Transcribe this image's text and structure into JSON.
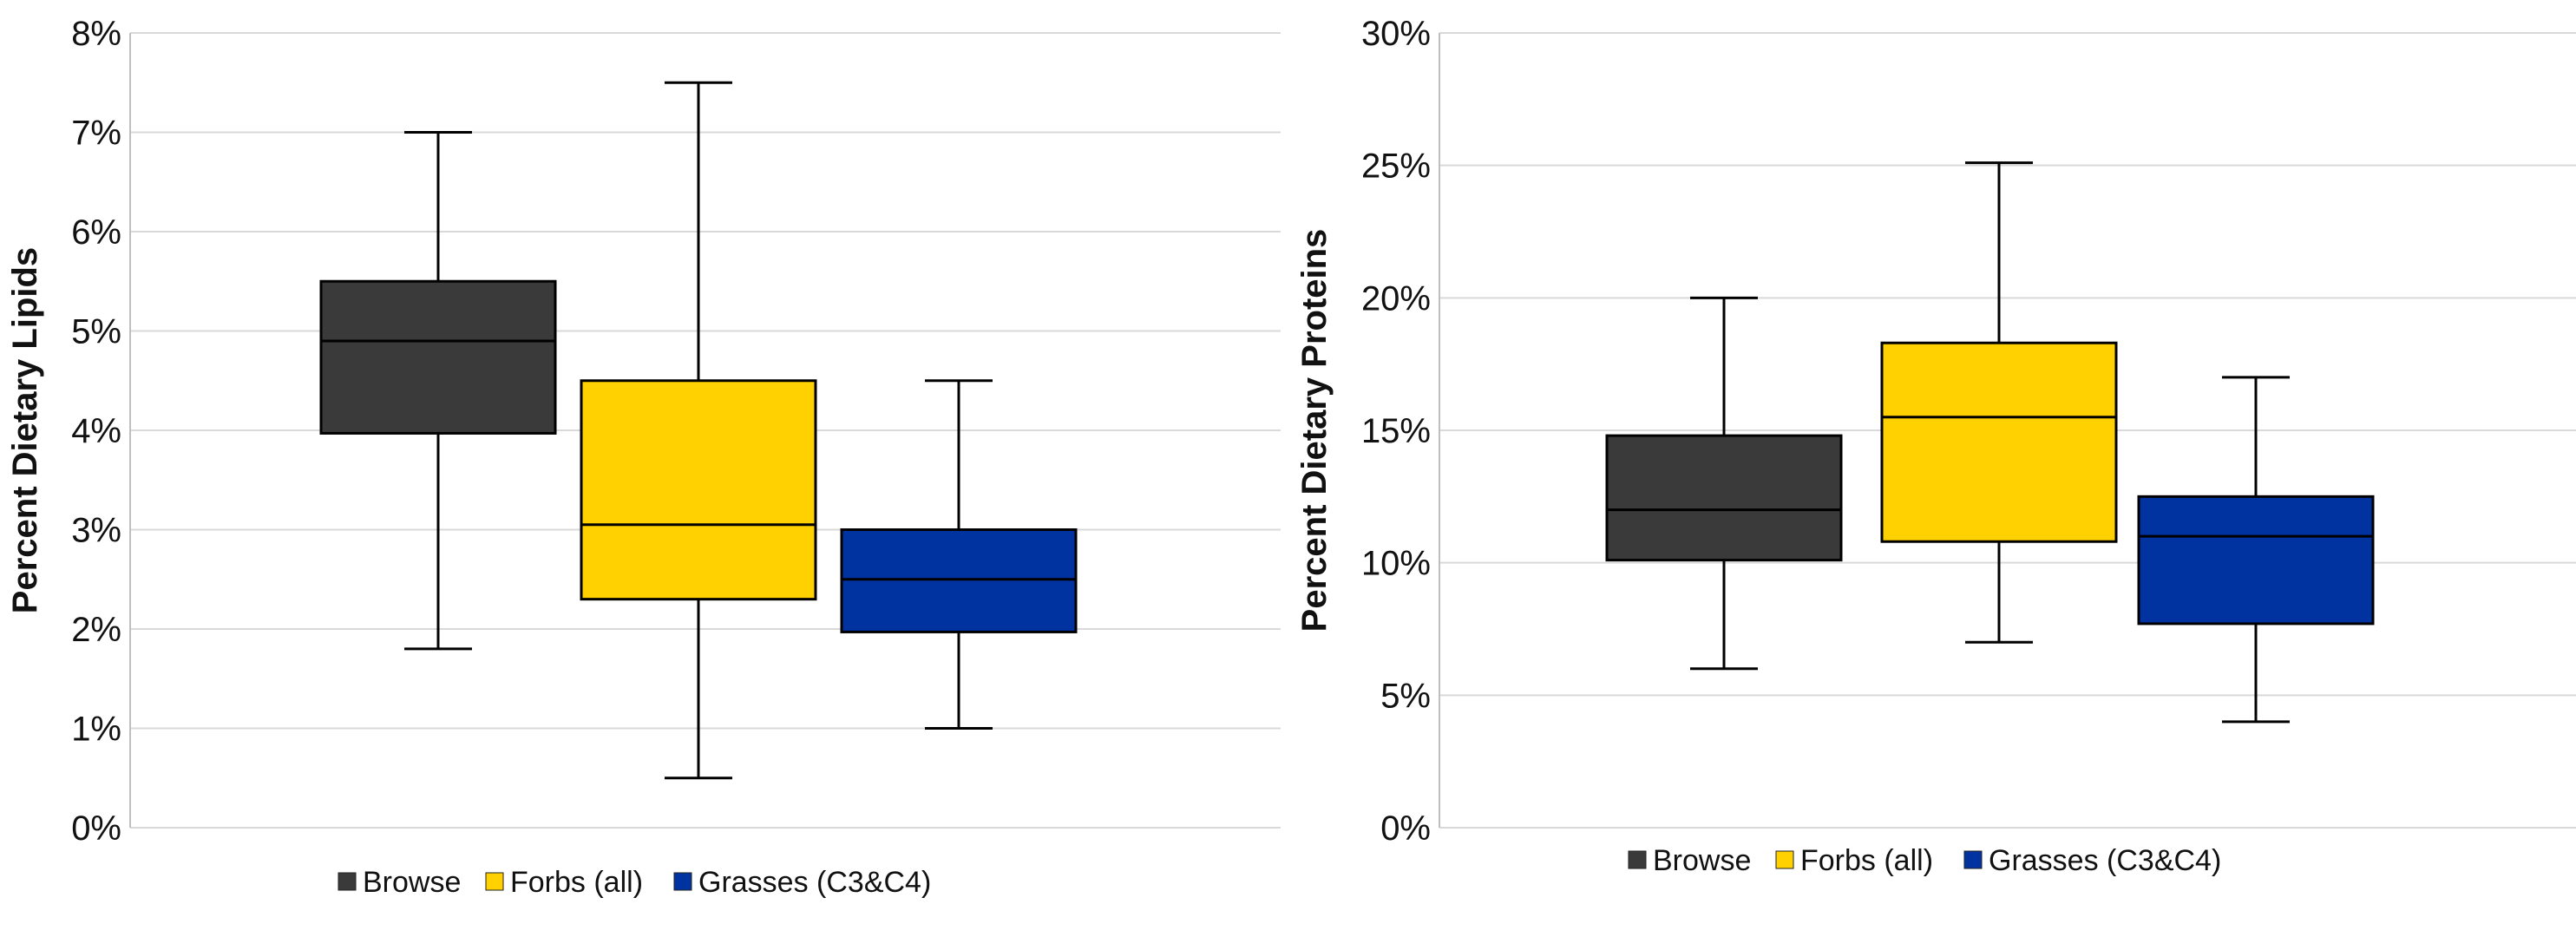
{
  "colors": {
    "browse": "#3a3a3a",
    "forbs": "#ffd100",
    "grasses": "#0032a0",
    "grid": "#d9d9d9",
    "stroke": "#000000"
  },
  "chart_data": [
    {
      "type": "boxplot",
      "ylabel": "Percent Dietary Lipids",
      "ylim": [
        0,
        8
      ],
      "yticks": [
        "0%",
        "1%",
        "2%",
        "3%",
        "4%",
        "5%",
        "6%",
        "7%",
        "8%"
      ],
      "grid": true,
      "legend_position": "bottom",
      "series": [
        {
          "name": "Browse",
          "color": "#3a3a3a",
          "min": 1.8,
          "q1": 3.97,
          "median": 4.9,
          "q3": 5.5,
          "max": 7.0
        },
        {
          "name": "Forbs (all)",
          "color": "#ffd100",
          "min": 0.5,
          "q1": 2.3,
          "median": 3.05,
          "q3": 4.5,
          "max": 7.5
        },
        {
          "name": "Grasses (C3&C4)",
          "color": "#0032a0",
          "min": 1.0,
          "q1": 1.97,
          "median": 2.5,
          "q3": 3.0,
          "max": 4.5
        }
      ]
    },
    {
      "type": "boxplot",
      "ylabel": "Percent Dietary Proteins",
      "ylim": [
        0,
        30
      ],
      "yticks": [
        "0%",
        "5%",
        "10%",
        "15%",
        "20%",
        "25%",
        "30%"
      ],
      "grid": true,
      "legend_position": "bottom",
      "series": [
        {
          "name": "Browse",
          "color": "#3a3a3a",
          "min": 6.0,
          "q1": 10.1,
          "median": 12.0,
          "q3": 14.8,
          "max": 20.0
        },
        {
          "name": "Forbs (all)",
          "color": "#ffd100",
          "min": 7.0,
          "q1": 10.8,
          "median": 15.5,
          "q3": 18.3,
          "max": 25.1
        },
        {
          "name": "Grasses (C3&C4)",
          "color": "#0032a0",
          "min": 4.0,
          "q1": 7.7,
          "median": 11.0,
          "q3": 12.5,
          "max": 17.0
        }
      ]
    }
  ]
}
